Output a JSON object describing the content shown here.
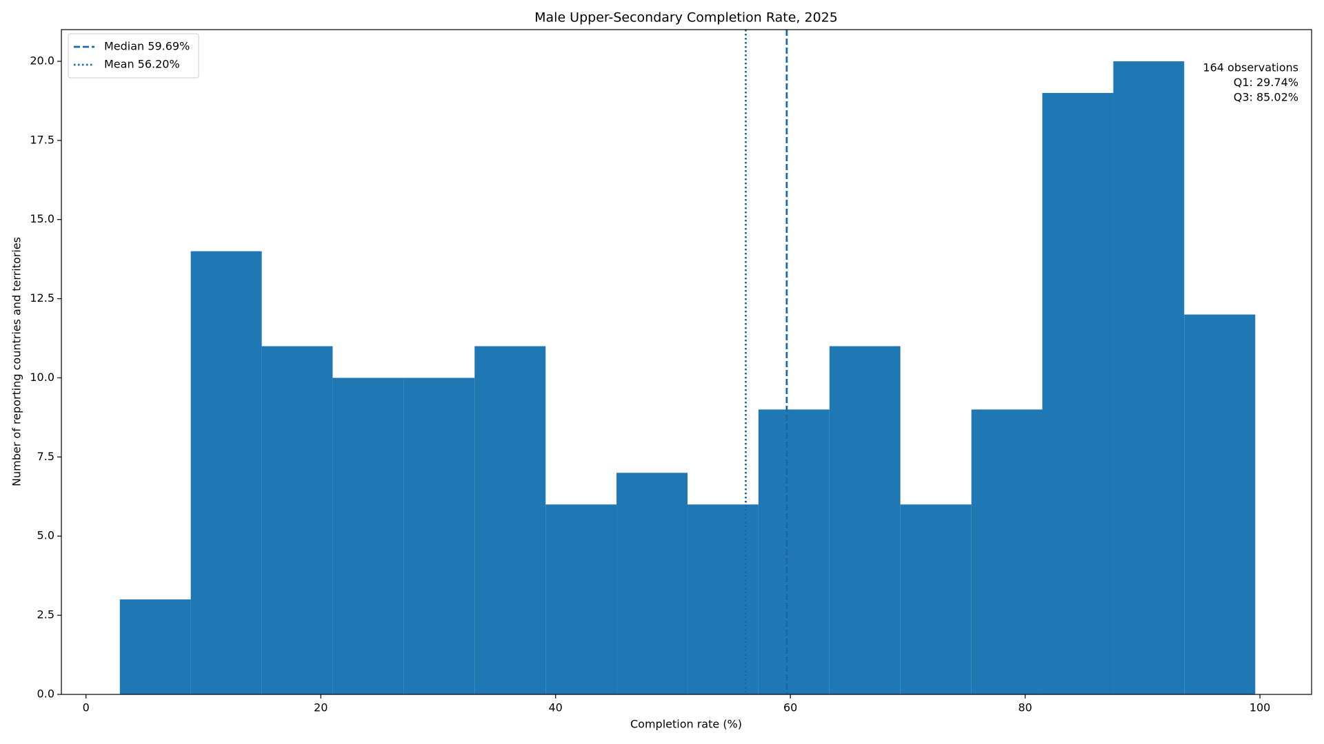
{
  "chart_data": {
    "type": "histogram",
    "title": "Male Upper-Secondary Completion Rate, 2025",
    "x_label": "Completion rate (%)",
    "y_label": "Number of reporting countries and territories",
    "bins": [
      2.88,
      8.92,
      14.97,
      21.01,
      27.06,
      33.1,
      39.15,
      45.19,
      51.24,
      57.28,
      63.33,
      69.37,
      75.42,
      81.46,
      87.51,
      93.55,
      99.6
    ],
    "counts": [
      3,
      14,
      11,
      10,
      10,
      11,
      6,
      7,
      6,
      9,
      11,
      6,
      9,
      19,
      20,
      12
    ],
    "color": "#1f77b4",
    "xlim": [
      -2.1,
      104.4
    ],
    "xticks": [
      0,
      20,
      40,
      60,
      80,
      100
    ],
    "ylim": [
      0,
      21
    ],
    "yticks": [
      {
        "value": 0,
        "label": "0.0"
      },
      {
        "value": 2.5,
        "label": "2.5"
      },
      {
        "value": 5,
        "label": "5.0"
      },
      {
        "value": 7.5,
        "label": "7.5"
      },
      {
        "value": 10,
        "label": "10.0"
      },
      {
        "value": 12.5,
        "label": "12.5"
      },
      {
        "value": 15,
        "label": "15.0"
      },
      {
        "value": 17.5,
        "label": "17.5"
      },
      {
        "value": 20,
        "label": "20.0"
      }
    ],
    "grid": false,
    "legend": "upper left",
    "reference_lines": [
      {
        "name": "Median 59.69%",
        "value": 59.69,
        "style": "dashed",
        "color": "#1a6aa8"
      },
      {
        "name": "Mean 56.20%",
        "value": 56.2,
        "style": "dotted",
        "color": "#1a6aa8"
      }
    ],
    "annotations": [
      "164 observations",
      "Q1: 29.74%",
      "Q3: 85.02%"
    ]
  }
}
